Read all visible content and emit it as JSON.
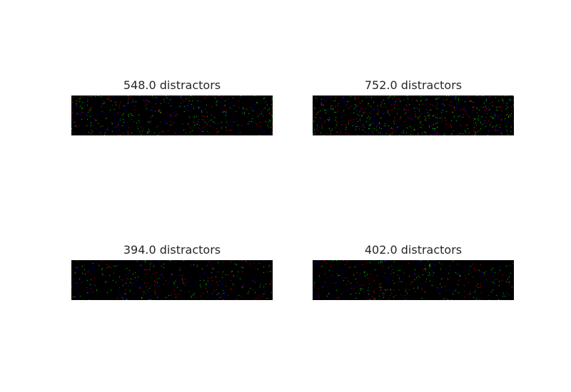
{
  "panels": [
    {
      "title": "548.0 distractors",
      "distractors": 548
    },
    {
      "title": "752.0 distractors",
      "distractors": 752
    },
    {
      "title": "394.0 distractors",
      "distractors": 394
    },
    {
      "title": "402.0 distractors",
      "distractors": 402
    }
  ],
  "colors": {
    "background": "#000000",
    "dot_red": "#ff0000",
    "dot_green": "#00ff00",
    "dot_blue": "#0000ff"
  }
}
